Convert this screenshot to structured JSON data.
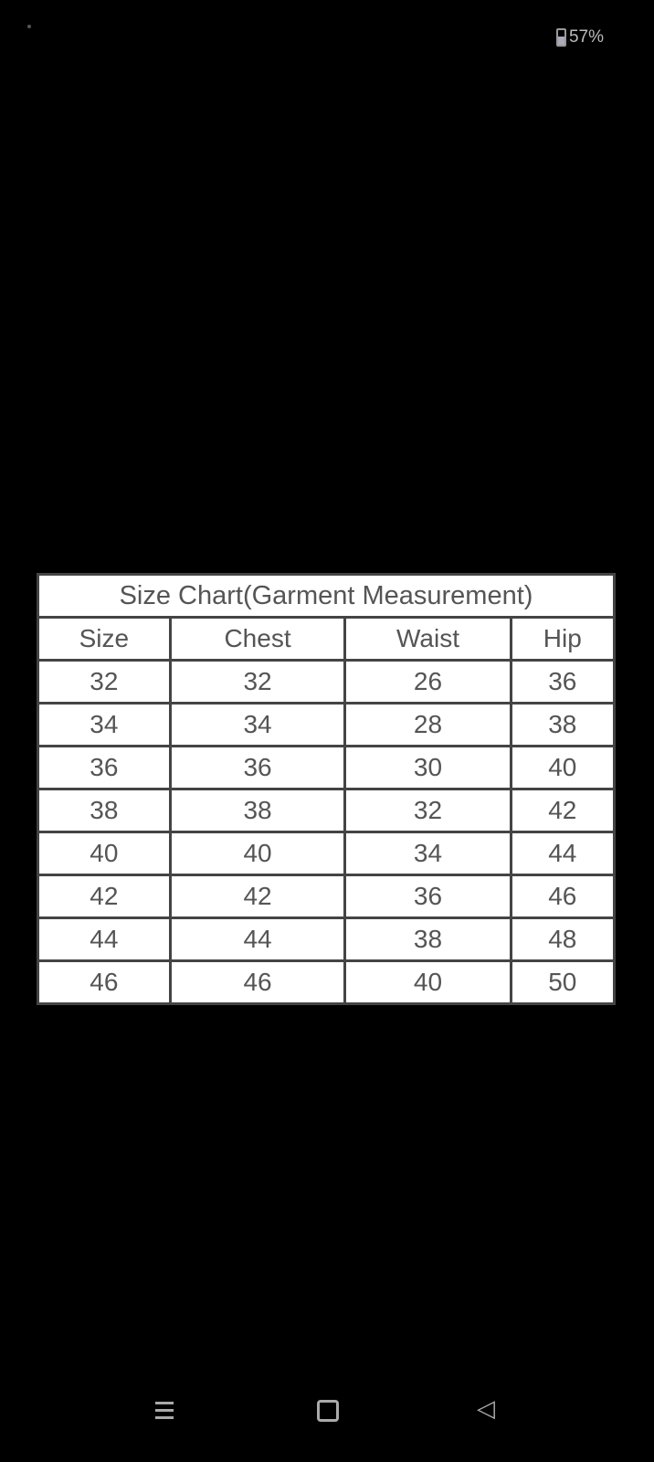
{
  "status": {
    "battery": "57%"
  },
  "table": {
    "title": "Size Chart(Garment Measurement)",
    "headers": [
      "Size",
      "Chest",
      "Waist",
      "Hip"
    ],
    "rows": [
      [
        "32",
        "32",
        "26",
        "36"
      ],
      [
        "34",
        "34",
        "28",
        "38"
      ],
      [
        "36",
        "36",
        "30",
        "40"
      ],
      [
        "38",
        "38",
        "32",
        "42"
      ],
      [
        "40",
        "40",
        "34",
        "44"
      ],
      [
        "42",
        "42",
        "36",
        "46"
      ],
      [
        "44",
        "44",
        "38",
        "48"
      ],
      [
        "46",
        "46",
        "40",
        "50"
      ]
    ]
  },
  "nav": {
    "icons": [
      "menu-icon",
      "home-icon",
      "back-icon"
    ]
  }
}
